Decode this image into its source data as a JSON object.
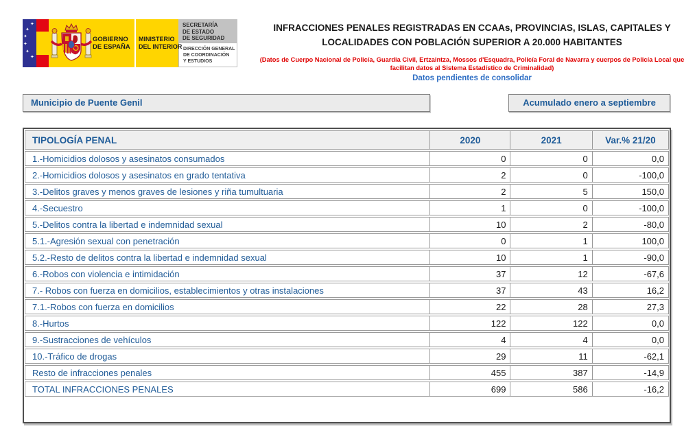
{
  "logo": {
    "gobierno_line1": "GOBIERNO",
    "gobierno_line2": "DE ESPAÑA",
    "ministerio_line1": "MINISTERIO",
    "ministerio_line2": "DEL INTERIOR",
    "secretaria_line1": "SECRETARÍA",
    "secretaria_line2": "DE ESTADO",
    "secretaria_line3": "DE SEGURIDAD",
    "direccion_line1": "DIRECCIÓN GENERAL",
    "direccion_line2": "DE COORDINACIÓN",
    "direccion_line3": "Y ESTUDIOS"
  },
  "header": {
    "title_line1": "INFRACCIONES PENALES REGISTRADAS EN CCAAs, PROVINCIAS, ISLAS, CAPITALES Y",
    "title_line2": "LOCALIDADES CON POBLACIÓN SUPERIOR A 20.000 HABITANTES",
    "source_note": "(Datos de Cuerpo Nacional de Policía, Guardia Civil, Ertzaintza, Mossos d'Esquadra, Policía Foral de Navarra y cuerpos de Policía Local que facilitan datos al Sistema Estadístico de Criminalidad)",
    "pending_note": "Datos pendientes de consolidar"
  },
  "filters": {
    "municipality": "Municipio de Puente Genil",
    "period": "Acumulado enero a septiembre"
  },
  "table": {
    "columns": [
      "TIPOLOGÍA PENAL",
      "2020",
      "2021",
      "Var.% 21/20"
    ],
    "rows": [
      {
        "label": "1.-Homicidios dolosos y asesinatos consumados",
        "y2020": "0",
        "y2021": "0",
        "variation": "0,0"
      },
      {
        "label": "2.-Homicidios dolosos y asesinatos en grado tentativa",
        "y2020": "2",
        "y2021": "0",
        "variation": "-100,0"
      },
      {
        "label": "3.-Delitos graves y menos graves de lesiones y riña tumultuaria",
        "y2020": "2",
        "y2021": "5",
        "variation": "150,0"
      },
      {
        "label": "4.-Secuestro",
        "y2020": "1",
        "y2021": "0",
        "variation": "-100,0"
      },
      {
        "label": "5.-Delitos contra la libertad e indemnidad sexual",
        "y2020": "10",
        "y2021": "2",
        "variation": "-80,0"
      },
      {
        "label": "5.1.-Agresión sexual con penetración",
        "y2020": "0",
        "y2021": "1",
        "variation": "100,0"
      },
      {
        "label": "5.2.-Resto de delitos contra la libertad e indemnidad sexual",
        "y2020": "10",
        "y2021": "1",
        "variation": "-90,0"
      },
      {
        "label": "6.-Robos con violencia e intimidación",
        "y2020": "37",
        "y2021": "12",
        "variation": "-67,6"
      },
      {
        "label": "7.- Robos con fuerza en domicilios, establecimientos y otras instalaciones",
        "y2020": "37",
        "y2021": "43",
        "variation": "16,2"
      },
      {
        "label": "7.1.-Robos con fuerza en domicilios",
        "y2020": "22",
        "y2021": "28",
        "variation": "27,3"
      },
      {
        "label": "8.-Hurtos",
        "y2020": "122",
        "y2021": "122",
        "variation": "0,0"
      },
      {
        "label": "9.-Sustracciones de vehículos",
        "y2020": "4",
        "y2021": "4",
        "variation": "0,0"
      },
      {
        "label": "10.-Tráfico de drogas",
        "y2020": "29",
        "y2021": "11",
        "variation": "-62,1"
      },
      {
        "label": "Resto de infracciones penales",
        "y2020": "455",
        "y2021": "387",
        "variation": "-14,9"
      },
      {
        "label": "TOTAL INFRACCIONES PENALES",
        "y2020": "699",
        "y2021": "586",
        "variation": "-16,2"
      }
    ]
  },
  "colors": {
    "accent_blue": "#1f5c99",
    "pending_blue": "#2e6ec4",
    "note_red": "#e00000",
    "logo_yellow": "#ffd500",
    "eu_blue": "#2e3192",
    "flag_red": "#e30613",
    "header_bg": "#efefef",
    "box_bg": "#ebebeb",
    "border_gray": "#9a9a9a"
  }
}
